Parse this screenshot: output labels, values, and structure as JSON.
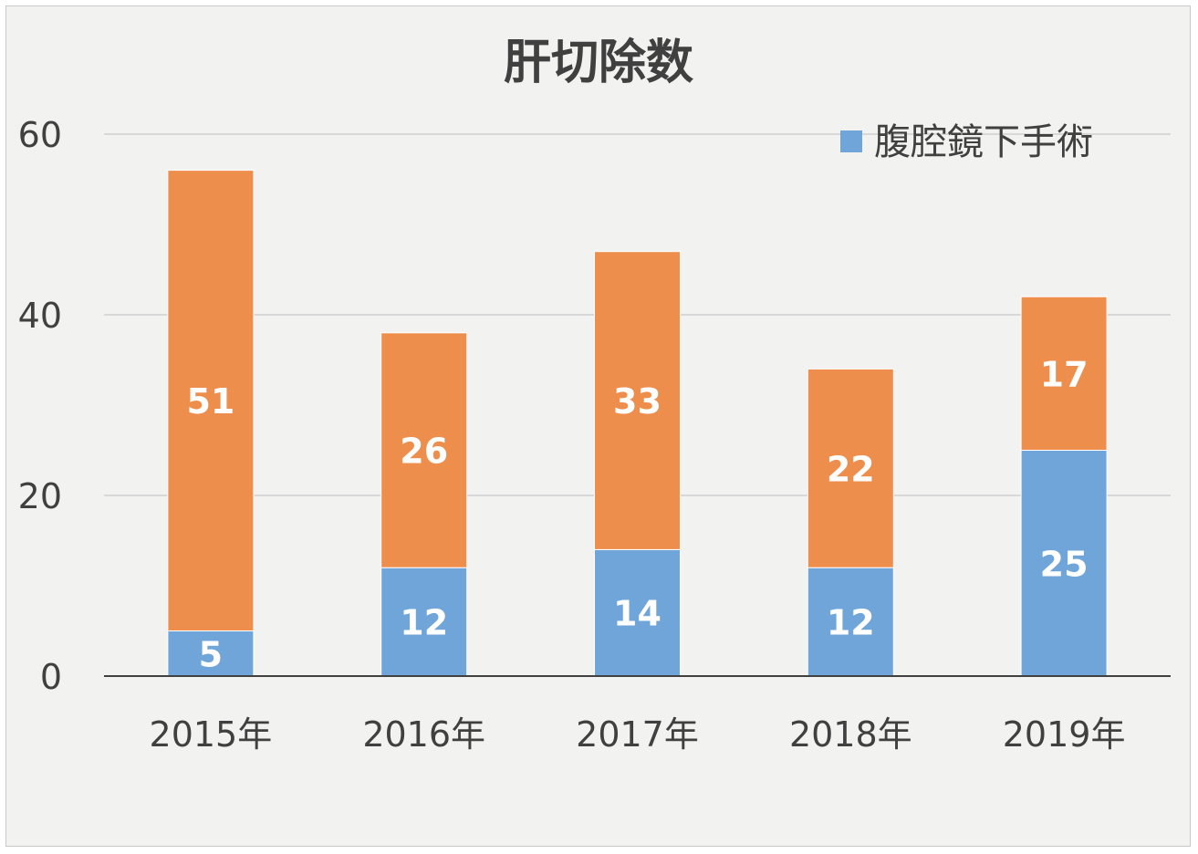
{
  "chart_data": {
    "type": "bar",
    "stacked": true,
    "title": "肝切除数",
    "categories": [
      "2015年",
      "2016年",
      "2017年",
      "2018年",
      "2019年"
    ],
    "series": [
      {
        "name": "腹腔鏡下手術",
        "values": [
          5,
          12,
          14,
          12,
          25
        ],
        "color": "#6fa5d9"
      },
      {
        "values": [
          51,
          26,
          33,
          22,
          17
        ],
        "color": "#ee8e4d"
      }
    ],
    "ylim": [
      0,
      60
    ],
    "yticks": [
      0,
      20,
      40,
      60
    ],
    "grid": true,
    "legend": "top-right"
  }
}
